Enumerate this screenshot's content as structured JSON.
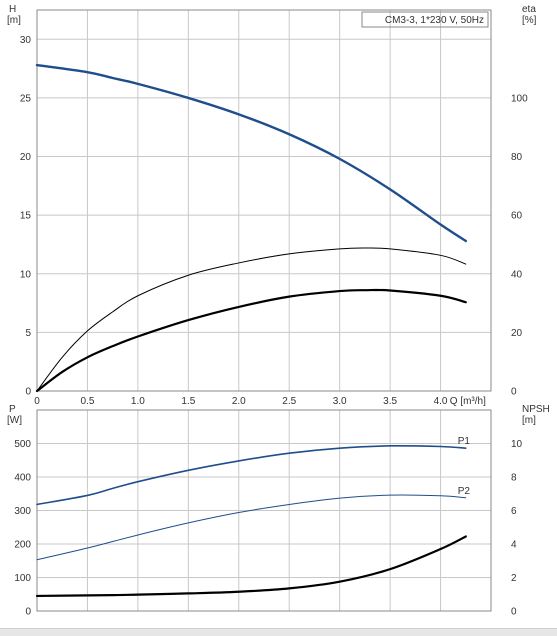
{
  "chart_data": [
    {
      "type": "line",
      "title": "CM3-3, 1*230 V, 50Hz",
      "xlabel": "Q [m³/h]",
      "x_ticks": [
        "0",
        "0.5",
        "1.0",
        "1.5",
        "2.0",
        "2.5",
        "3.0",
        "3.5",
        "4.0"
      ],
      "xlim": [
        0,
        4.5
      ],
      "y_left": {
        "label": [
          "H",
          "[m]"
        ],
        "lim": [
          0,
          32.5
        ],
        "ticks": [
          "0",
          "5",
          "10",
          "15",
          "20",
          "25",
          "30"
        ]
      },
      "y_right": {
        "label": [
          "eta",
          "[%]"
        ],
        "lim": [
          0,
          130
        ],
        "ticks": [
          "0",
          "20",
          "40",
          "60",
          "80",
          "100"
        ]
      },
      "grid": true,
      "series": [
        {
          "axis": "left",
          "color": "#1f4e8c",
          "width": 2.4,
          "x": [
            0.0,
            0.5,
            0.75,
            1.0,
            1.5,
            2.0,
            2.5,
            3.0,
            3.5,
            4.0,
            4.25
          ],
          "y": [
            27.8,
            27.2,
            26.7,
            26.2,
            25.0,
            23.6,
            21.9,
            19.8,
            17.2,
            14.2,
            12.8
          ]
        },
        {
          "axis": "right",
          "color": "#000000",
          "width": 1.0,
          "x": [
            0.0,
            0.25,
            0.5,
            0.75,
            1.0,
            1.5,
            2.0,
            2.5,
            3.0,
            3.25,
            3.5,
            4.0,
            4.25
          ],
          "y": [
            0,
            11.5,
            20.5,
            27,
            32.5,
            39.5,
            43.7,
            46.8,
            48.5,
            48.8,
            48.5,
            46.3,
            43.3
          ]
        },
        {
          "axis": "right",
          "color": "#000000",
          "width": 2.2,
          "x": [
            0.0,
            0.25,
            0.5,
            0.75,
            1.0,
            1.5,
            2.0,
            2.5,
            3.0,
            3.25,
            3.5,
            4.0,
            4.25
          ],
          "y": [
            0,
            6.5,
            11.5,
            15.3,
            18.6,
            24.2,
            28.7,
            32.2,
            34.1,
            34.4,
            34.3,
            32.5,
            30.3
          ]
        }
      ]
    },
    {
      "type": "line",
      "xlim": [
        0,
        4.5
      ],
      "y_left": {
        "label": [
          "P",
          "[W]"
        ],
        "lim": [
          0,
          600
        ],
        "ticks": [
          "0",
          "100",
          "200",
          "300",
          "400",
          "500"
        ]
      },
      "y_right": {
        "label": [
          "NPSH",
          "[m]"
        ],
        "lim": [
          0,
          12
        ],
        "ticks": [
          "0",
          "2",
          "4",
          "6",
          "8",
          "10"
        ]
      },
      "grid": true,
      "series": [
        {
          "name": "P1",
          "axis": "left",
          "color": "#1f4e8c",
          "width": 1.6,
          "x": [
            0.0,
            0.5,
            0.75,
            1.0,
            1.5,
            2.0,
            2.5,
            3.0,
            3.5,
            4.0,
            4.25
          ],
          "y": [
            318,
            345,
            366,
            386,
            420,
            448,
            471,
            486,
            493,
            491,
            486
          ]
        },
        {
          "name": "P2",
          "axis": "left",
          "color": "#1f4e8c",
          "width": 1.0,
          "x": [
            0.0,
            0.5,
            1.0,
            1.5,
            2.0,
            2.5,
            3.0,
            3.5,
            4.0,
            4.25
          ],
          "y": [
            153,
            188,
            227,
            263,
            294,
            318,
            337,
            346,
            344,
            338
          ]
        },
        {
          "axis": "right",
          "color": "#000000",
          "width": 2.2,
          "x": [
            0.0,
            0.75,
            1.0,
            1.5,
            2.0,
            2.5,
            3.0,
            3.5,
            4.0,
            4.25
          ],
          "y": [
            0.9,
            0.95,
            0.98,
            1.05,
            1.15,
            1.35,
            1.75,
            2.5,
            3.7,
            4.45
          ]
        }
      ]
    }
  ]
}
